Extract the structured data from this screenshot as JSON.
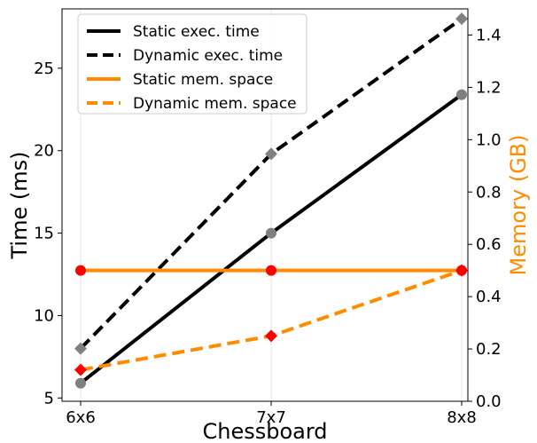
{
  "chart_data": {
    "type": "line",
    "categories": [
      "6x6",
      "7x7",
      "8x8"
    ],
    "xlabel": "Chessboard",
    "ylabel_left": "Time (ms)",
    "ylabel_right": "Memory (GB)",
    "ylim_left": [
      4.8,
      28.6
    ],
    "ylim_right": [
      0.0,
      1.5
    ],
    "yticks_left": [
      5,
      10,
      15,
      20,
      25
    ],
    "yticks_right": [
      0.0,
      0.2,
      0.4,
      0.6,
      0.8,
      1.0,
      1.2,
      1.4
    ],
    "yticks_right_labels": [
      "0.0",
      "0.2",
      "0.4",
      "0.6",
      "0.8",
      "1.0",
      "1.2",
      "1.4"
    ],
    "grid": "vertical",
    "legend_position": "top-left",
    "series": [
      {
        "name": "Static exec. time",
        "axis": "left",
        "values": [
          5.9,
          15.0,
          23.4
        ],
        "color": "#000000",
        "dash": "solid",
        "marker": "circle",
        "marker_color": "#808080"
      },
      {
        "name": "Dynamic exec. time",
        "axis": "left",
        "values": [
          8.0,
          19.8,
          28.0
        ],
        "color": "#000000",
        "dash": "dashed",
        "marker": "diamond",
        "marker_color": "#808080"
      },
      {
        "name": "Static mem. space",
        "axis": "right",
        "values": [
          0.5,
          0.5,
          0.5
        ],
        "color": "#ff8c00",
        "dash": "solid",
        "marker": "circle",
        "marker_color": "#ff0000"
      },
      {
        "name": "Dynamic mem. space",
        "axis": "right",
        "values": [
          0.12,
          0.25,
          0.5
        ],
        "color": "#ff8c00",
        "dash": "dashed",
        "marker": "diamond",
        "marker_color": "#ff0000"
      }
    ],
    "colors": {
      "right_axis_label": "#ff8c00",
      "grid": "#e6e6e6"
    }
  }
}
